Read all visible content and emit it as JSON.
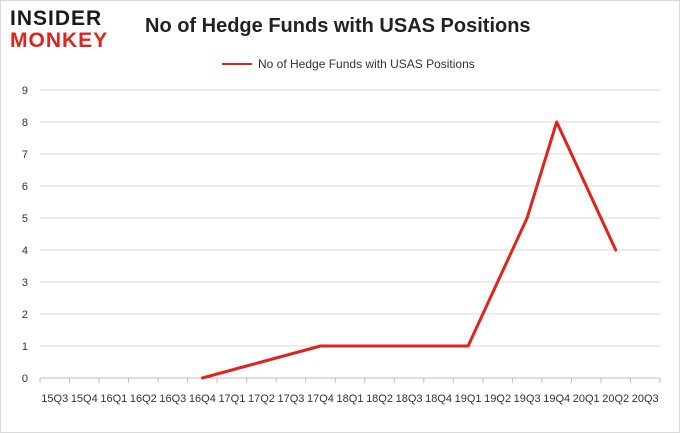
{
  "logo": {
    "line1": "INSIDER",
    "line2": "MONKEY"
  },
  "chart_data": {
    "type": "line",
    "title": "No of Hedge Funds with USAS Positions",
    "xlabel": "",
    "ylabel": "",
    "ylim": [
      0,
      9
    ],
    "yticks": [
      0,
      1,
      2,
      3,
      4,
      5,
      6,
      7,
      8,
      9
    ],
    "grid": true,
    "legend_position": "top",
    "categories": [
      "15Q3",
      "15Q4",
      "16Q1",
      "16Q2",
      "16Q3",
      "16Q4",
      "17Q1",
      "17Q2",
      "17Q3",
      "17Q4",
      "18Q1",
      "18Q2",
      "18Q3",
      "18Q4",
      "19Q1",
      "19Q2",
      "19Q3",
      "19Q4",
      "20Q1",
      "20Q2",
      "20Q3"
    ],
    "series": [
      {
        "name": "No of Hedge Funds with USAS Positions",
        "color": "#e0231c",
        "values": [
          null,
          null,
          null,
          null,
          null,
          0,
          0.25,
          0.5,
          0.75,
          1,
          1,
          1,
          1,
          1,
          1,
          3,
          5,
          8,
          6,
          4,
          null
        ]
      }
    ]
  }
}
